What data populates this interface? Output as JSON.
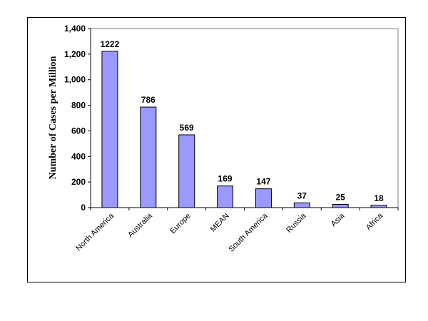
{
  "chart_data": {
    "type": "bar",
    "title": "",
    "xlabel": "",
    "ylabel": "Number of Cases per Million",
    "categories": [
      "North America",
      "Australia",
      "Europe",
      "MEAN",
      "South America",
      "Russia",
      "Asia",
      "Africa"
    ],
    "values": [
      1222,
      786,
      569,
      169,
      147,
      37,
      25,
      18
    ],
    "data_labels": [
      "1222",
      "786",
      "569",
      "169",
      "147",
      "37",
      "25",
      "18"
    ],
    "ylim": [
      0,
      1400
    ],
    "yticks": [
      "0",
      "200",
      "400",
      "600",
      "800",
      "1,000",
      "1,200",
      "1,400"
    ],
    "grid": false,
    "legend": "none",
    "bar_color": "#9999ff"
  }
}
